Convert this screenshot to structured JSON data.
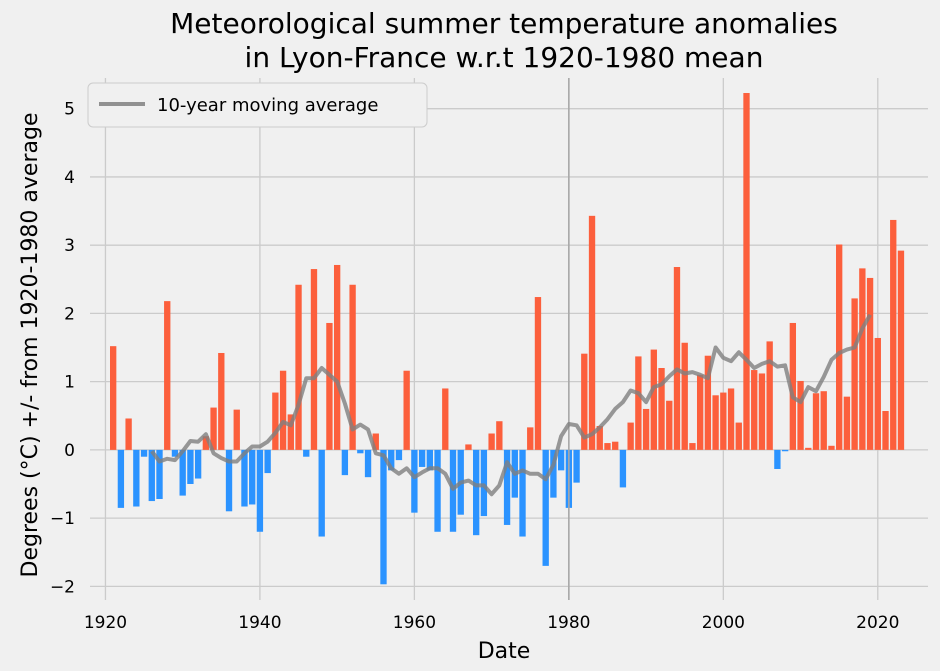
{
  "chart_data": {
    "type": "bar",
    "title_line1": "Meteorological summer temperature anomalies",
    "title_line2": "in Lyon-France w.r.t 1920-1980 mean",
    "xlabel": "Date",
    "ylabel": "Degrees (°C) +/- from 1920-1980 average",
    "xlim": [
      1918,
      2026.5
    ],
    "ylim": [
      -2.2,
      5.45
    ],
    "xticks": [
      1920,
      1940,
      1960,
      1980,
      2000,
      2020
    ],
    "yticks": [
      -2,
      -1,
      0,
      1,
      2,
      3,
      4,
      5
    ],
    "grid": true,
    "vertical_reference_line": 1980,
    "colors": {
      "positive": "#fc5f3c",
      "negative": "#2b93ff",
      "moving_average": "#808080",
      "grid": "#cbcbcb",
      "background": "#f0f0f0",
      "reference_line": "#a8a8a8"
    },
    "legend": {
      "position": "top-left",
      "entries": [
        {
          "label": "10-year moving average"
        }
      ]
    },
    "years": [
      1921,
      1922,
      1923,
      1924,
      1925,
      1926,
      1927,
      1928,
      1929,
      1930,
      1931,
      1932,
      1933,
      1934,
      1935,
      1936,
      1937,
      1938,
      1939,
      1940,
      1941,
      1942,
      1943,
      1944,
      1945,
      1946,
      1947,
      1948,
      1949,
      1950,
      1951,
      1952,
      1953,
      1954,
      1955,
      1956,
      1957,
      1958,
      1959,
      1960,
      1961,
      1962,
      1963,
      1964,
      1965,
      1966,
      1967,
      1968,
      1969,
      1970,
      1971,
      1972,
      1973,
      1974,
      1975,
      1976,
      1977,
      1978,
      1979,
      1980,
      1981,
      1982,
      1983,
      1984,
      1985,
      1986,
      1987,
      1988,
      1989,
      1990,
      1991,
      1992,
      1993,
      1994,
      1995,
      1996,
      1997,
      1998,
      1999,
      2000,
      2001,
      2002,
      2003,
      2004,
      2005,
      2006,
      2007,
      2008,
      2009,
      2010,
      2011,
      2012,
      2013,
      2014,
      2015,
      2016,
      2017,
      2018,
      2019,
      2020,
      2021,
      2022,
      2023
    ],
    "values": [
      1.52,
      -0.85,
      0.46,
      -0.83,
      -0.1,
      -0.75,
      -0.72,
      2.18,
      -0.1,
      -0.67,
      -0.5,
      -0.42,
      0.2,
      0.62,
      1.42,
      -0.9,
      0.59,
      -0.83,
      -0.8,
      -1.2,
      -0.34,
      0.84,
      1.16,
      0.52,
      2.42,
      -0.1,
      2.65,
      -1.27,
      1.86,
      2.71,
      -0.37,
      2.42,
      -0.05,
      -0.4,
      0.24,
      -1.97,
      -0.3,
      -0.15,
      1.16,
      -0.92,
      -0.25,
      -0.3,
      -1.2,
      0.9,
      -1.2,
      -0.95,
      0.08,
      -1.25,
      -0.97,
      0.24,
      0.42,
      -1.1,
      -0.7,
      -1.27,
      0.33,
      2.24,
      -1.7,
      -0.7,
      -0.3,
      -0.85,
      -0.48,
      1.41,
      3.43,
      0.35,
      0.1,
      0.12,
      -0.55,
      0.4,
      1.37,
      0.6,
      1.47,
      1.2,
      0.72,
      2.68,
      1.57,
      0.1,
      1.1,
      1.38,
      0.8,
      0.84,
      0.9,
      0.4,
      5.23,
      1.17,
      1.12,
      1.59,
      -0.28,
      -0.02,
      1.86,
      1.01,
      0.03,
      0.83,
      0.86,
      0.06,
      3.01,
      0.78,
      2.22,
      2.66,
      2.52,
      1.64,
      0.57,
      3.37,
      2.92
    ],
    "moving_average": {
      "years": [
        1926,
        1927,
        1928,
        1929,
        1930,
        1931,
        1932,
        1933,
        1934,
        1935,
        1936,
        1937,
        1938,
        1939,
        1940,
        1941,
        1942,
        1943,
        1944,
        1945,
        1946,
        1947,
        1948,
        1949,
        1950,
        1951,
        1952,
        1953,
        1954,
        1955,
        1956,
        1957,
        1958,
        1959,
        1960,
        1961,
        1962,
        1963,
        1964,
        1965,
        1966,
        1967,
        1968,
        1969,
        1970,
        1971,
        1972,
        1973,
        1974,
        1975,
        1976,
        1977,
        1978,
        1979,
        1980,
        1981,
        1982,
        1983,
        1984,
        1985,
        1986,
        1987,
        1988,
        1989,
        1990,
        1991,
        1992,
        1993,
        1994,
        1995,
        1996,
        1997,
        1998,
        1999,
        2000,
        2001,
        2002,
        2003,
        2004,
        2005,
        2006,
        2007,
        2008,
        2009,
        2010,
        2011,
        2012,
        2013,
        2014,
        2015,
        2016,
        2017,
        2018,
        2019
      ],
      "values": [
        -0.02,
        -0.17,
        -0.13,
        -0.15,
        -0.02,
        0.13,
        0.12,
        0.23,
        -0.05,
        -0.12,
        -0.17,
        -0.17,
        -0.05,
        0.05,
        0.05,
        0.12,
        0.25,
        0.41,
        0.36,
        0.66,
        1.05,
        1.05,
        1.2,
        1.1,
        1.0,
        0.68,
        0.3,
        0.37,
        0.3,
        -0.05,
        -0.08,
        -0.27,
        -0.35,
        -0.27,
        -0.4,
        -0.33,
        -0.27,
        -0.27,
        -0.35,
        -0.57,
        -0.48,
        -0.45,
        -0.52,
        -0.52,
        -0.65,
        -0.52,
        -0.18,
        -0.35,
        -0.3,
        -0.35,
        -0.35,
        -0.43,
        -0.22,
        0.2,
        0.38,
        0.36,
        0.18,
        0.23,
        0.33,
        0.45,
        0.6,
        0.7,
        0.87,
        0.83,
        0.7,
        0.92,
        0.96,
        1.08,
        1.18,
        1.12,
        1.14,
        1.1,
        1.05,
        1.5,
        1.35,
        1.3,
        1.43,
        1.32,
        1.2,
        1.26,
        1.3,
        1.22,
        1.24,
        0.77,
        0.7,
        0.92,
        0.86,
        1.07,
        1.32,
        1.42,
        1.47,
        1.5,
        1.78,
        1.98
      ]
    }
  }
}
